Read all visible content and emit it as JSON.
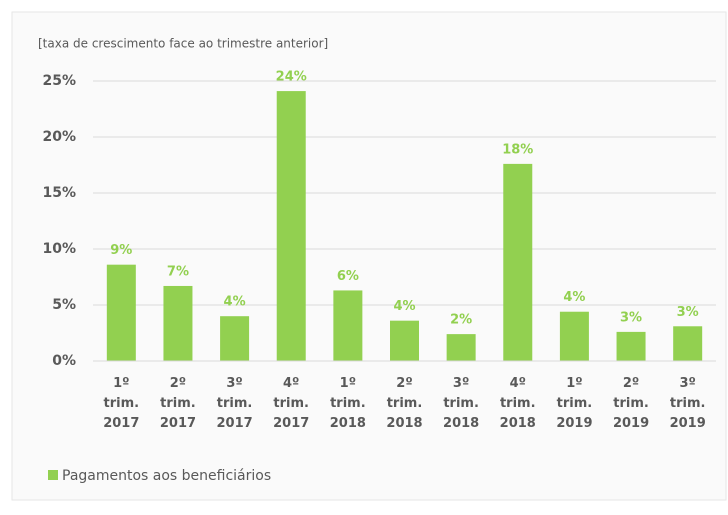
{
  "chart_data": {
    "type": "bar",
    "subtitle": "[taxa de crescimento face ao trimestre anterior]",
    "categories": [
      "1º trim. 2017",
      "2º trim. 2017",
      "3º trim. 2017",
      "4º trim. 2017",
      "1º trim. 2018",
      "2º trim. 2018",
      "3º trim. 2018",
      "4º trim. 2018",
      "1º trim. 2019",
      "2º trim. 2019",
      "3º trim. 2019"
    ],
    "series": [
      {
        "name": "Pagamentos aos beneficiários",
        "color": "#92d050",
        "values": [
          8.6,
          6.7,
          4.0,
          24.1,
          6.3,
          3.6,
          2.4,
          17.6,
          4.4,
          2.6,
          3.1
        ],
        "value_labels": [
          "9%",
          "7%",
          "4%",
          "24%",
          "6%",
          "4%",
          "2%",
          "18%",
          "4%",
          "3%",
          "3%"
        ]
      }
    ],
    "ylim": [
      0,
      25
    ],
    "yticks": [
      {
        "value": 0,
        "label": "0%"
      },
      {
        "value": 5,
        "label": "5%"
      },
      {
        "value": 10,
        "label": "10%"
      },
      {
        "value": 15,
        "label": "15%"
      },
      {
        "value": 20,
        "label": "20%"
      },
      {
        "value": 25,
        "label": "25%"
      }
    ],
    "grid": true,
    "legend": "bottom-left"
  }
}
